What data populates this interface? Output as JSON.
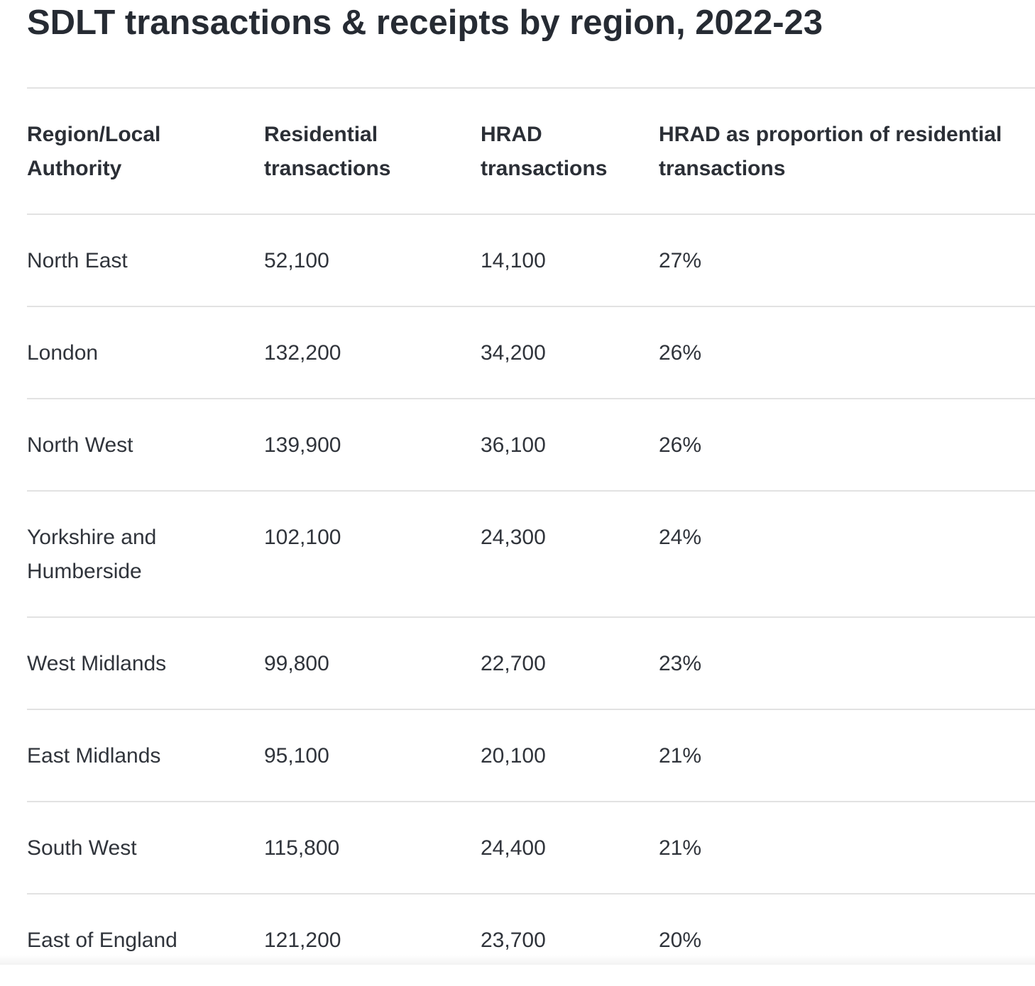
{
  "title": "SDLT transactions & receipts by region, 2022-23",
  "table": {
    "headers": [
      "Region/Local Authority",
      "Residential transactions",
      "HRAD transactions",
      "HRAD as proportion of residential transactions"
    ],
    "rows": [
      [
        "North East",
        "52,100",
        "14,100",
        "27%"
      ],
      [
        "London",
        "132,200",
        "34,200",
        "26%"
      ],
      [
        "North West",
        "139,900",
        "36,100",
        "26%"
      ],
      [
        "Yorkshire and Humberside",
        "102,100",
        "24,300",
        "24%"
      ],
      [
        "West Midlands",
        "99,800",
        "22,700",
        "23%"
      ],
      [
        "East Midlands",
        "95,100",
        "20,100",
        "21%"
      ],
      [
        "South West",
        "115,800",
        "24,400",
        "21%"
      ],
      [
        "East of England",
        "121,200",
        "23,700",
        "20%"
      ]
    ]
  }
}
